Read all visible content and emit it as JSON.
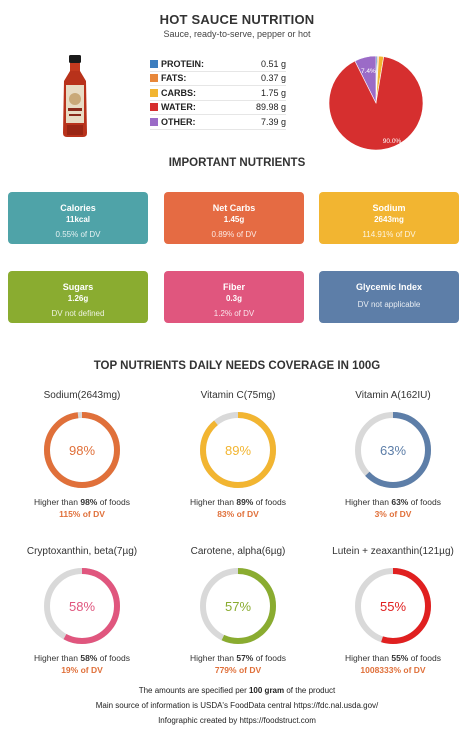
{
  "header": {
    "title": "HOT SAUCE NUTRITION",
    "subtitle": "Sauce, ready-to-serve, pepper or hot"
  },
  "macros": [
    {
      "label": "PROTEIN:",
      "value": "0.51 g",
      "color": "#3d7ebf"
    },
    {
      "label": "FATS:",
      "value": "0.37 g",
      "color": "#e8873a"
    },
    {
      "label": "CARBS:",
      "value": "1.75 g",
      "color": "#f2b531"
    },
    {
      "label": "WATER:",
      "value": "89.98 g",
      "color": "#d62f2f"
    },
    {
      "label": "OTHER:",
      "value": "7.39 g",
      "color": "#9b6bc7"
    }
  ],
  "chart_data": {
    "type": "pie",
    "slices": [
      {
        "name": "PROTEIN",
        "value": 0.51,
        "color": "#3d7ebf"
      },
      {
        "name": "FATS",
        "value": 0.37,
        "color": "#e8873a"
      },
      {
        "name": "CARBS",
        "value": 1.75,
        "color": "#f2b531"
      },
      {
        "name": "WATER",
        "value": 89.98,
        "color": "#d62f2f"
      },
      {
        "name": "OTHER",
        "value": 7.39,
        "color": "#9b6bc7"
      }
    ],
    "labels": [
      {
        "text": "90.0%",
        "slice": "WATER"
      },
      {
        "text": "7.4%",
        "slice": "OTHER"
      }
    ]
  },
  "important": {
    "title": "IMPORTANT NUTRIENTS",
    "boxes": [
      {
        "title": "Calories",
        "value": "11kcal",
        "dv": "0.55% of DV",
        "color": "#4fa3a8"
      },
      {
        "title": "Net Carbs",
        "value": "1.45g",
        "dv": "0.89% of DV",
        "color": "#e56b43"
      },
      {
        "title": "Sodium",
        "value": "2643mg",
        "dv": "114.91% of DV",
        "color": "#f2b531"
      },
      {
        "title": "Sugars",
        "value": "1.26g",
        "dv": "DV not defined",
        "color": "#8aac30"
      },
      {
        "title": "Fiber",
        "value": "0.3g",
        "dv": "1.2% of DV",
        "color": "#e0567e"
      },
      {
        "title": "Glycemic Index",
        "value": "",
        "dv": "DV not applicable",
        "color": "#5d7ea8"
      }
    ]
  },
  "top": {
    "title": "TOP NUTRIENTS DAILY NEEDS COVERAGE IN 100G",
    "higher_prefix": "Higher than ",
    "higher_suffix": " of foods",
    "items": [
      {
        "name": "Sodium(2643mg)",
        "pct": "98%",
        "pct_value": 98,
        "dv": "115% of DV",
        "color": "#e0703a"
      },
      {
        "name": "Vitamin C(75mg)",
        "pct": "89%",
        "pct_value": 89,
        "dv": "83% of DV",
        "color": "#f2b531"
      },
      {
        "name": "Vitamin A(162IU)",
        "pct": "63%",
        "pct_value": 63,
        "dv": "3% of DV",
        "color": "#5d7ea8"
      },
      {
        "name": "Cryptoxanthin, beta(7µg)",
        "pct": "58%",
        "pct_value": 58,
        "dv": "19% of DV",
        "color": "#e0567e"
      },
      {
        "name": "Carotene, alpha(6µg)",
        "pct": "57%",
        "pct_value": 57,
        "dv": "779% of DV",
        "color": "#8aac30"
      },
      {
        "name": "Lutein + zeaxanthin(121µg)",
        "pct": "55%",
        "pct_value": 55,
        "dv": "1008333% of DV",
        "color": "#e02020"
      }
    ]
  },
  "footer": {
    "line1_pre": "The amounts are specified per ",
    "line1_bold": "100 gram",
    "line1_post": " of the product",
    "line2": "Main source of information is USDA's FoodData central https://fdc.nal.usda.gov/",
    "line3": "Infographic created by https://foodstruct.com"
  }
}
